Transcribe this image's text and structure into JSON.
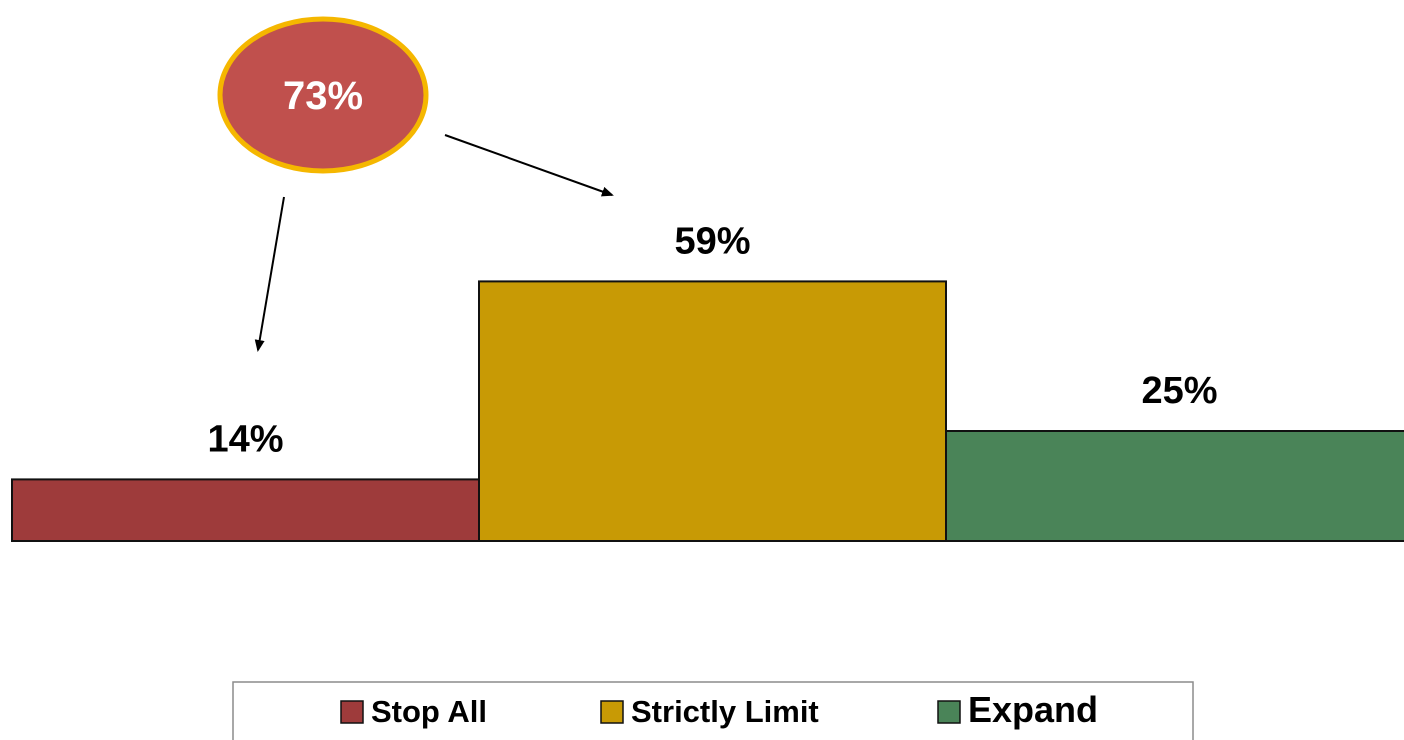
{
  "chart_data": {
    "type": "bar",
    "categories": [
      "Stop All",
      "Strictly Limit",
      "Expand"
    ],
    "values": [
      14,
      59,
      25
    ],
    "data_labels": [
      "14%",
      "59%",
      "25%"
    ],
    "ylim": [
      0,
      100
    ],
    "title": "",
    "xlabel": "",
    "ylabel": "",
    "grid": false,
    "legend_position": "bottom",
    "colors": [
      "#9e3b3b",
      "#c89a05",
      "#4a8458"
    ],
    "annotation": {
      "label": "73%",
      "value": 73,
      "fill": "#c0504d",
      "border": "#f5b700",
      "points_to": [
        "Stop All",
        "Strictly Limit"
      ]
    }
  }
}
